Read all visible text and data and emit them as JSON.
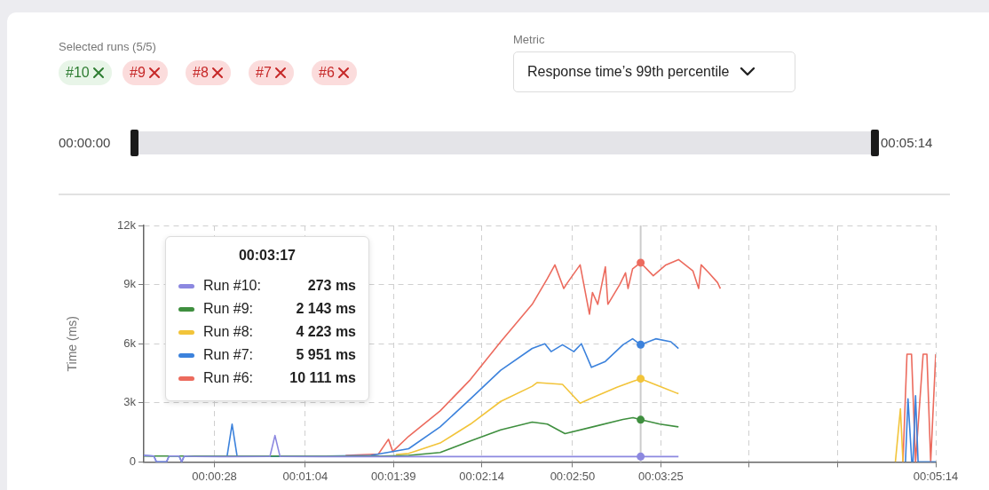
{
  "chart_data": {
    "type": "line",
    "ylabel": "Time (ms)",
    "xlim": [
      0,
      314
    ],
    "xticks": [
      {
        "value": 28,
        "label": "00:00:28"
      },
      {
        "value": 64,
        "label": "00:01:04"
      },
      {
        "value": 99,
        "label": "00:01:39"
      },
      {
        "value": 134,
        "label": "00:02:14"
      },
      {
        "value": 170,
        "label": "00:02:50"
      },
      {
        "value": 205,
        "label": "00:03:25"
      },
      {
        "value": 240,
        "label": null
      },
      {
        "value": 275,
        "label": null
      },
      {
        "value": 314,
        "label": "00:05:14"
      }
    ],
    "ylim": [
      0,
      12000
    ],
    "yticks": [
      {
        "value": 0,
        "label": "0"
      },
      {
        "value": 3000,
        "label": "3k"
      },
      {
        "value": 6000,
        "label": "6k"
      },
      {
        "value": 9000,
        "label": "9k"
      },
      {
        "value": 12000,
        "label": "12k"
      }
    ],
    "grid": true,
    "legend": "top left",
    "line_style": "solid",
    "series": [
      {
        "name": "Run #10:",
        "color": "#8c88e0",
        "x": [
          0,
          4,
          5,
          9,
          10,
          14,
          15,
          16,
          20,
          30,
          50,
          52,
          54,
          70,
          100,
          150,
          197,
          212
        ],
        "values": [
          330,
          300,
          0,
          0,
          300,
          300,
          0,
          300,
          280,
          270,
          280,
          1340,
          280,
          270,
          270,
          273,
          273,
          273
        ]
      },
      {
        "name": "Run #9:",
        "color": "#3f8f3f",
        "x": [
          0,
          40,
          95,
          105,
          117.5,
          129.5,
          141.5,
          154,
          160,
          167,
          178,
          190,
          194,
          197,
          204.6,
          212
        ],
        "values": [
          300,
          300,
          300,
          330,
          480,
          1060,
          1630,
          2020,
          1920,
          1440,
          1780,
          2160,
          2250,
          2143,
          1920,
          1780
        ]
      },
      {
        "name": "Run #8:",
        "color": "#f2c43a",
        "x": [
          100,
          105,
          117.5,
          129.5,
          141.5,
          154,
          156,
          166,
          173,
          177.9,
          187.6,
          193.8,
          197,
          204.6,
          212,
          230,
          298,
          300,
          301
        ],
        "values": [
          380,
          430,
          960,
          1920,
          3070,
          3840,
          4030,
          3940,
          2980,
          3260,
          3790,
          4080,
          4223,
          3840,
          3460,
          null,
          0,
          2700,
          0
        ]
      },
      {
        "name": "Run #7:",
        "color": "#3c82dc",
        "x": [
          0,
          4,
          5,
          9,
          10,
          14,
          15,
          16,
          33,
          35,
          37,
          60,
          90,
          105,
          117.5,
          129.5,
          141.5,
          154,
          159,
          161.5,
          166,
          170.5,
          173.5,
          177.5,
          183,
          190,
          193.8,
          197,
          203,
          209,
          212,
          230,
          302,
          303,
          304.5,
          305,
          306,
          307,
          314
        ],
        "values": [
          330,
          300,
          0,
          0,
          300,
          300,
          0,
          300,
          280,
          1920,
          280,
          280,
          330,
          670,
          1780,
          3200,
          4650,
          5760,
          6000,
          5600,
          5950,
          5600,
          6000,
          4800,
          5100,
          5950,
          6250,
          5951,
          6250,
          6100,
          5760,
          null,
          0,
          3200,
          0,
          0,
          3360,
          0,
          0
        ]
      },
      {
        "name": "Run #6:",
        "color": "#ec6b5e",
        "x": [
          80,
          93,
          97,
          98.7,
          105,
          117.5,
          129.5,
          141.5,
          154,
          160,
          163,
          166.5,
          168,
          173,
          176.7,
          177.9,
          180,
          183,
          184,
          188.7,
          191,
          192,
          193.8,
          197,
          202,
          207,
          212,
          217.7,
          220,
          221,
          224,
          227.5,
          228.6,
          260,
          301,
          302.6,
          304.4,
          306,
          309,
          310.5,
          312,
          314
        ],
        "values": [
          330,
          400,
          1150,
          530,
          1300,
          2590,
          4180,
          6100,
          8000,
          9300,
          10000,
          8800,
          9100,
          10000,
          7500,
          8600,
          8000,
          9900,
          8000,
          9000,
          9600,
          8800,
          9800,
          10111,
          9450,
          10000,
          10270,
          9700,
          8800,
          10000,
          9600,
          9100,
          8800,
          null,
          0,
          5470,
          5470,
          0,
          5470,
          5470,
          0,
          5470
        ]
      }
    ],
    "ref_lines": [
      {
        "axis": "x",
        "value": 197,
        "color": "#cccccc"
      }
    ],
    "annotations": [
      "Selected runs (5/5)",
      "#10",
      "#9",
      "#8",
      "#7",
      "#6",
      "Metric",
      "Response time’s 99th percentile",
      "00:00:00",
      "00:05:14",
      "00:03:17",
      "273 ms",
      "2 143 ms",
      "4 223 ms",
      "5 951 ms",
      "10 111 ms"
    ]
  }
}
